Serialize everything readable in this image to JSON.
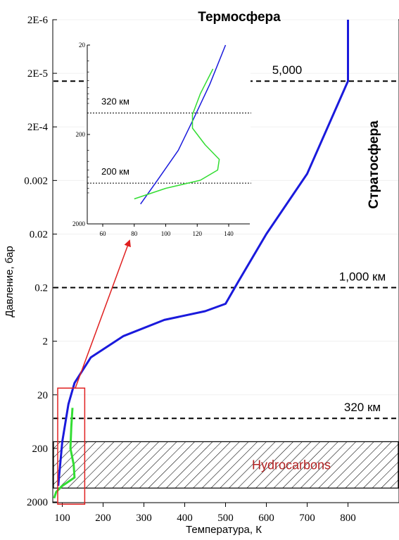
{
  "chart_data": [
    {
      "type": "line",
      "title": "",
      "xlabel": "Температура, К",
      "ylabel": "Давление, бар",
      "xlim": [
        50,
        850
      ],
      "y_scale": "log",
      "y_reversed": true,
      "ylim": [
        2e-06,
        2000
      ],
      "x_ticks": [
        "100",
        "200",
        "300",
        "400",
        "500",
        "600",
        "700",
        "800"
      ],
      "x_tick_values": [
        100,
        200,
        300,
        400,
        500,
        600,
        700,
        800
      ],
      "y_ticks": [
        "2E-6",
        "2E-5",
        "2E-4",
        "0.002",
        "0.02",
        "0.2",
        "2",
        "20",
        "200",
        "2000"
      ],
      "y_tick_values": [
        2e-06,
        2e-05,
        0.0002,
        0.002,
        0.02,
        0.2,
        2,
        20,
        200,
        2000
      ],
      "series": [
        {
          "color": "#1a1adc",
          "points": [
            [
              90,
              1000
            ],
            [
              100,
              150
            ],
            [
              115,
              30
            ],
            [
              130,
              12
            ],
            [
              170,
              4
            ],
            [
              250,
              1.6
            ],
            [
              350,
              0.8
            ],
            [
              450,
              0.55
            ],
            [
              500,
              0.4
            ],
            [
              530,
              0.16
            ],
            [
              600,
              0.02
            ],
            [
              700,
              0.0015
            ],
            [
              800,
              2.8e-05
            ],
            [
              800,
              2e-06
            ]
          ]
        },
        {
          "color": "#33dd33",
          "points": [
            [
              80,
              1700
            ],
            [
              85,
              1300
            ],
            [
              100,
              1000
            ],
            [
              130,
              700
            ],
            [
              128,
              400
            ],
            [
              120,
              200
            ],
            [
              122,
              80
            ],
            [
              125,
              35
            ]
          ]
        }
      ],
      "reference_lines": [
        {
          "label": "5,000",
          "y": 2.8e-05
        },
        {
          "label": "1,000 км",
          "y": 0.2
        },
        {
          "label": "320 км",
          "y": 55
        }
      ],
      "region_labels": [
        "Термосфера",
        "Стратосфера"
      ],
      "band": {
        "label": "Hydrocarbons",
        "y_range": [
          150,
          1100
        ]
      },
      "zoom_box": {
        "x_range": [
          45,
          155
        ],
        "y_range": [
          15,
          2200
        ]
      }
    },
    {
      "type": "line",
      "title": "",
      "xlim": [
        50,
        150
      ],
      "y_scale": "log",
      "y_reversed": true,
      "ylim": [
        20,
        2000
      ],
      "x_ticks": [
        "60",
        "80",
        "100",
        "120",
        "140"
      ],
      "x_tick_values": [
        60,
        80,
        100,
        120,
        140
      ],
      "y_ticks": [
        "20",
        "200",
        "2000"
      ],
      "y_tick_values": [
        20,
        200,
        2000
      ],
      "series": [
        {
          "color": "#1a1adc",
          "points": [
            [
              84,
              1200
            ],
            [
              95,
              640
            ],
            [
              108,
              300
            ],
            [
              118,
              130
            ],
            [
              128,
              55
            ],
            [
              138,
              20
            ]
          ]
        },
        {
          "color": "#33dd33",
          "points": [
            [
              80,
              1050
            ],
            [
              100,
              800
            ],
            [
              122,
              650
            ],
            [
              133,
              500
            ],
            [
              134,
              380
            ],
            [
              125,
              260
            ],
            [
              117,
              170
            ],
            [
              117,
              120
            ],
            [
              122,
              70
            ],
            [
              130,
              37
            ]
          ]
        }
      ],
      "reference_lines": [
        {
          "label": "320 км",
          "y": 115
        },
        {
          "label": "200 км",
          "y": 700
        }
      ]
    }
  ]
}
